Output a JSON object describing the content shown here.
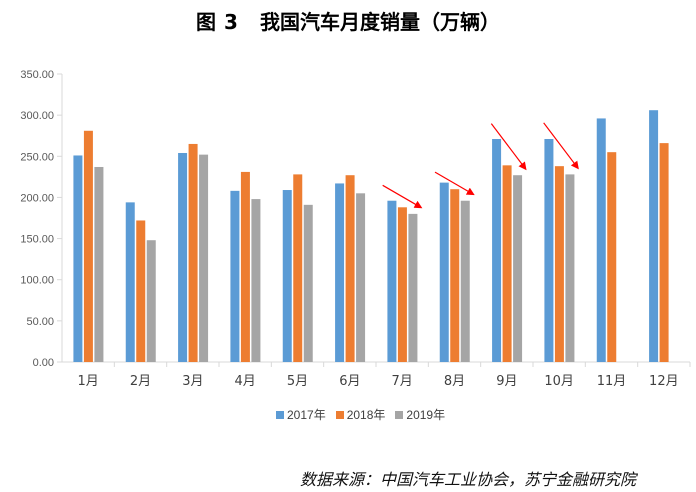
{
  "title": {
    "prefix": "图",
    "number": "3",
    "text": "我国汽车月度销量（万辆）"
  },
  "source": "数据来源：中国汽车工业协会，苏宁金融研究院",
  "chart_data": {
    "type": "bar",
    "categories": [
      "1月",
      "2月",
      "3月",
      "4月",
      "5月",
      "6月",
      "7月",
      "8月",
      "9月",
      "10月",
      "11月",
      "12月"
    ],
    "series": [
      {
        "name": "2017年",
        "color": "#5B9BD5",
        "values": [
          251,
          194,
          254,
          208,
          209,
          217,
          196,
          218,
          271,
          271,
          296,
          306
        ]
      },
      {
        "name": "2018年",
        "color": "#ED7D31",
        "values": [
          281,
          172,
          265,
          231,
          228,
          227,
          188,
          210,
          239,
          238,
          255,
          266
        ]
      },
      {
        "name": "2019年",
        "color": "#A5A5A5",
        "values": [
          237,
          148,
          252,
          198,
          191,
          205,
          180,
          196,
          227,
          228,
          null,
          null
        ]
      }
    ],
    "ylim": [
      0,
      350
    ],
    "yticks": [
      "0.00",
      "50.00",
      "100.00",
      "150.00",
      "200.00",
      "250.00",
      "300.00",
      "350.00"
    ],
    "grid": false,
    "legend_position": "bottom",
    "annotations": [
      {
        "type": "arrow",
        "color": "#FF0000",
        "category": "7月"
      },
      {
        "type": "arrow",
        "color": "#FF0000",
        "category": "8月"
      },
      {
        "type": "arrow",
        "color": "#FF0000",
        "category": "9月"
      },
      {
        "type": "arrow",
        "color": "#FF0000",
        "category": "10月"
      }
    ]
  }
}
